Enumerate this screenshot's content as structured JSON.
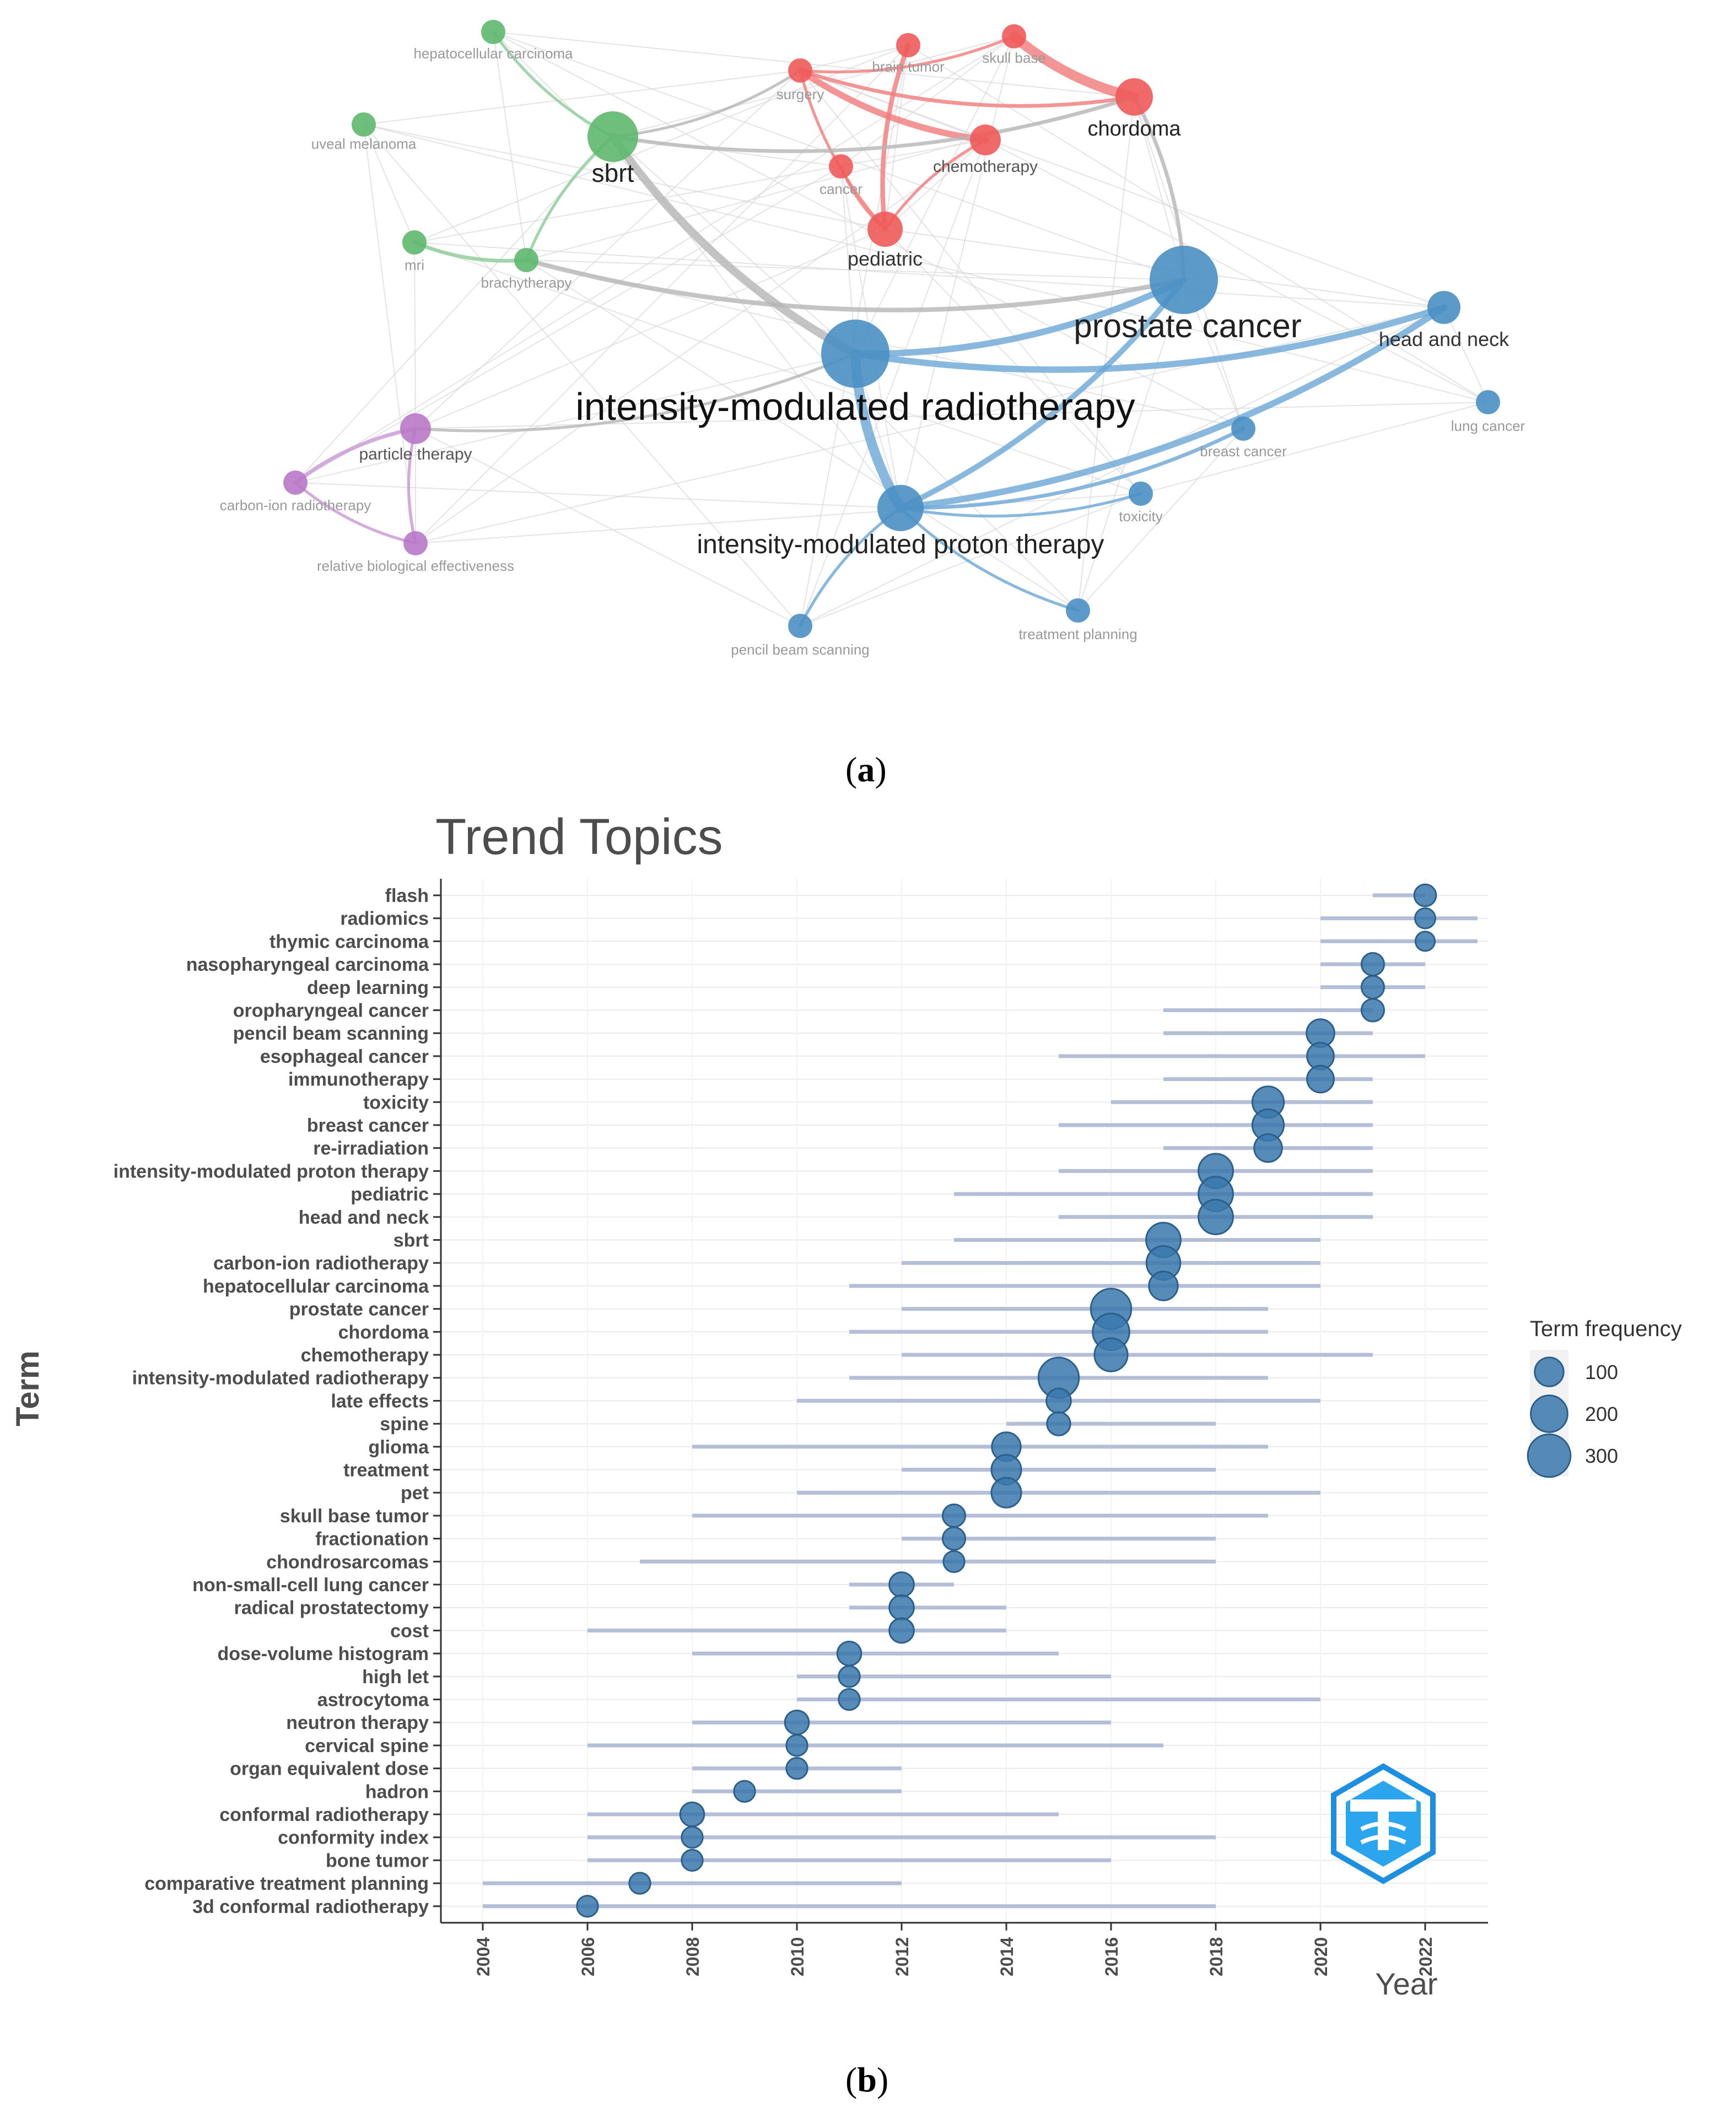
{
  "panels": [
    {
      "label_open": "(",
      "label_letter": "a",
      "label_close": ")"
    },
    {
      "label_open": "(",
      "label_letter": "b",
      "label_close": ")"
    }
  ],
  "chart_data": [
    {
      "type": "network",
      "title": "",
      "clusters": {
        "red": "#f05a5a",
        "green": "#5db86d",
        "blue": "#4a8fc4",
        "purple": "#b878c8",
        "grey": "#b8b8b8"
      },
      "nodes": [
        {
          "id": "hepatocellular carcinoma",
          "cluster": "green",
          "weight": 1
        },
        {
          "id": "uveal melanoma",
          "cluster": "green",
          "weight": 1
        },
        {
          "id": "sbrt",
          "cluster": "green",
          "weight": 4
        },
        {
          "id": "mri",
          "cluster": "green",
          "weight": 1
        },
        {
          "id": "brachytherapy",
          "cluster": "green",
          "weight": 1
        },
        {
          "id": "brain tumor",
          "cluster": "red",
          "weight": 1
        },
        {
          "id": "skull base",
          "cluster": "red",
          "weight": 1
        },
        {
          "id": "surgery",
          "cluster": "red",
          "weight": 1
        },
        {
          "id": "chordoma",
          "cluster": "red",
          "weight": 2
        },
        {
          "id": "chemotherapy",
          "cluster": "red",
          "weight": 1.5
        },
        {
          "id": "cancer",
          "cluster": "red",
          "weight": 1
        },
        {
          "id": "pediatric",
          "cluster": "red",
          "weight": 2
        },
        {
          "id": "prostate cancer",
          "cluster": "blue",
          "weight": 6
        },
        {
          "id": "head and neck",
          "cluster": "blue",
          "weight": 2
        },
        {
          "id": "intensity-modulated radiotherapy",
          "cluster": "blue",
          "weight": 8
        },
        {
          "id": "lung cancer",
          "cluster": "blue",
          "weight": 1
        },
        {
          "id": "breast cancer",
          "cluster": "blue",
          "weight": 1
        },
        {
          "id": "toxicity",
          "cluster": "blue",
          "weight": 1
        },
        {
          "id": "intensity-modulated proton therapy",
          "cluster": "blue",
          "weight": 4
        },
        {
          "id": "pencil beam scanning",
          "cluster": "blue",
          "weight": 1
        },
        {
          "id": "treatment planning",
          "cluster": "blue",
          "weight": 1
        },
        {
          "id": "particle therapy",
          "cluster": "purple",
          "weight": 1.5
        },
        {
          "id": "carbon-ion radiotherapy",
          "cluster": "purple",
          "weight": 1
        },
        {
          "id": "relative biological effectiveness",
          "cluster": "purple",
          "weight": 1
        }
      ],
      "edges": [
        {
          "source": "skull base",
          "target": "chordoma",
          "strength": 5
        },
        {
          "source": "surgery",
          "target": "chemotherapy",
          "strength": 3
        },
        {
          "source": "brain tumor",
          "target": "pediatric",
          "strength": 2
        },
        {
          "source": "surgery",
          "target": "chordoma",
          "strength": 1.5
        },
        {
          "source": "surgery",
          "target": "skull base",
          "strength": 1
        },
        {
          "source": "chemotherapy",
          "target": "pediatric",
          "strength": 1
        },
        {
          "source": "cancer",
          "target": "pediatric",
          "strength": 1
        },
        {
          "source": "surgery",
          "target": "pediatric",
          "strength": 1
        },
        {
          "source": "sbrt",
          "target": "surgery",
          "strength": 1
        },
        {
          "source": "sbrt",
          "target": "chordoma",
          "strength": 1.5
        },
        {
          "source": "sbrt",
          "target": "intensity-modulated radiotherapy",
          "strength": 4
        },
        {
          "source": "mri",
          "target": "brachytherapy",
          "strength": 1.5
        },
        {
          "source": "sbrt",
          "target": "brachytherapy",
          "strength": 1
        },
        {
          "source": "brachytherapy",
          "target": "prostate cancer",
          "strength": 2
        },
        {
          "source": "hepatocellular carcinoma",
          "target": "sbrt",
          "strength": 1
        },
        {
          "source": "intensity-modulated radiotherapy",
          "target": "prostate cancer",
          "strength": 3
        },
        {
          "source": "intensity-modulated radiotherapy",
          "target": "head and neck",
          "strength": 3
        },
        {
          "source": "intensity-modulated radiotherapy",
          "target": "intensity-modulated proton therapy",
          "strength": 5
        },
        {
          "source": "intensity-modulated proton therapy",
          "target": "prostate cancer",
          "strength": 2.5
        },
        {
          "source": "intensity-modulated proton therapy",
          "target": "head and neck",
          "strength": 3
        },
        {
          "source": "intensity-modulated proton therapy",
          "target": "breast cancer",
          "strength": 1.5
        },
        {
          "source": "intensity-modulated proton therapy",
          "target": "toxicity",
          "strength": 1
        },
        {
          "source": "intensity-modulated proton therapy",
          "target": "pencil beam scanning",
          "strength": 1
        },
        {
          "source": "intensity-modulated proton therapy",
          "target": "treatment planning",
          "strength": 1
        },
        {
          "source": "particle therapy",
          "target": "carbon-ion radiotherapy",
          "strength": 1.5
        },
        {
          "source": "carbon-ion radiotherapy",
          "target": "relative biological effectiveness",
          "strength": 1
        },
        {
          "source": "particle therapy",
          "target": "relative biological effectiveness",
          "strength": 1
        },
        {
          "source": "prostate cancer",
          "target": "chordoma",
          "strength": 1.5
        },
        {
          "source": "particle therapy",
          "target": "intensity-modulated radiotherapy",
          "strength": 1
        }
      ]
    },
    {
      "type": "scatter",
      "title": "Trend Topics",
      "xlabel": "Year",
      "ylabel": "Term",
      "xlim": [
        2003.2,
        2023.2
      ],
      "xticks": [
        2004,
        2006,
        2008,
        2010,
        2012,
        2014,
        2016,
        2018,
        2020,
        2022
      ],
      "legend": {
        "title": "Term frequency",
        "values": [
          100,
          200,
          300
        ],
        "placement": "right"
      },
      "series": [
        {
          "points": [
            {
              "term": "flash",
              "year": 2022,
              "q1": 2021,
              "q3": 2022,
              "freq": 40
            },
            {
              "term": "radiomics",
              "year": 2022,
              "q1": 2020,
              "q3": 2023,
              "freq": 30
            },
            {
              "term": "thymic carcinoma",
              "year": 2022,
              "q1": 2020,
              "q3": 2023,
              "freq": 25
            },
            {
              "term": "nasopharyngeal carcinoma",
              "year": 2021,
              "q1": 2020,
              "q3": 2022,
              "freq": 45
            },
            {
              "term": "deep learning",
              "year": 2021,
              "q1": 2020,
              "q3": 2022,
              "freq": 45
            },
            {
              "term": "oropharyngeal cancer",
              "year": 2021,
              "q1": 2017,
              "q3": 2021,
              "freq": 45
            },
            {
              "term": "pencil beam scanning",
              "year": 2020,
              "q1": 2017,
              "q3": 2021,
              "freq": 90
            },
            {
              "term": "esophageal cancer",
              "year": 2020,
              "q1": 2015,
              "q3": 2022,
              "freq": 80
            },
            {
              "term": "immunotherapy",
              "year": 2020,
              "q1": 2017,
              "q3": 2021,
              "freq": 80
            },
            {
              "term": "toxicity",
              "year": 2019,
              "q1": 2016,
              "q3": 2021,
              "freq": 130
            },
            {
              "term": "breast cancer",
              "year": 2019,
              "q1": 2015,
              "q3": 2021,
              "freq": 130
            },
            {
              "term": "re-irradiation",
              "year": 2019,
              "q1": 2017,
              "q3": 2021,
              "freq": 90
            },
            {
              "term": "intensity-modulated proton therapy",
              "year": 2018,
              "q1": 2015,
              "q3": 2021,
              "freq": 170
            },
            {
              "term": "pediatric",
              "year": 2018,
              "q1": 2013,
              "q3": 2021,
              "freq": 170
            },
            {
              "term": "head and neck",
              "year": 2018,
              "q1": 2015,
              "q3": 2021,
              "freq": 170
            },
            {
              "term": "sbrt",
              "year": 2017,
              "q1": 2013,
              "q3": 2020,
              "freq": 170
            },
            {
              "term": "carbon-ion radiotherapy",
              "year": 2017,
              "q1": 2012,
              "q3": 2020,
              "freq": 160
            },
            {
              "term": "hepatocellular carcinoma",
              "year": 2017,
              "q1": 2011,
              "q3": 2020,
              "freq": 100
            },
            {
              "term": "prostate cancer",
              "year": 2016,
              "q1": 2012,
              "q3": 2019,
              "freq": 260
            },
            {
              "term": "chordoma",
              "year": 2016,
              "q1": 2011,
              "q3": 2019,
              "freq": 200
            },
            {
              "term": "chemotherapy",
              "year": 2016,
              "q1": 2012,
              "q3": 2021,
              "freq": 150
            },
            {
              "term": "intensity-modulated radiotherapy",
              "year": 2015,
              "q1": 2011,
              "q3": 2019,
              "freq": 260
            },
            {
              "term": "late effects",
              "year": 2015,
              "q1": 2010,
              "q3": 2020,
              "freq": 60
            },
            {
              "term": "spine",
              "year": 2015,
              "q1": 2014,
              "q3": 2018,
              "freq": 50
            },
            {
              "term": "glioma",
              "year": 2014,
              "q1": 2008,
              "q3": 2019,
              "freq": 100
            },
            {
              "term": "treatment",
              "year": 2014,
              "q1": 2012,
              "q3": 2018,
              "freq": 110
            },
            {
              "term": "pet",
              "year": 2014,
              "q1": 2010,
              "q3": 2020,
              "freq": 110
            },
            {
              "term": "skull base tumor",
              "year": 2013,
              "q1": 2008,
              "q3": 2019,
              "freq": 45
            },
            {
              "term": "fractionation",
              "year": 2013,
              "q1": 2012,
              "q3": 2018,
              "freq": 45
            },
            {
              "term": "chondrosarcomas",
              "year": 2013,
              "q1": 2007,
              "q3": 2018,
              "freq": 35
            },
            {
              "term": "non-small-cell lung cancer",
              "year": 2012,
              "q1": 2011,
              "q3": 2013,
              "freq": 60
            },
            {
              "term": "radical prostatectomy",
              "year": 2012,
              "q1": 2011,
              "q3": 2014,
              "freq": 60
            },
            {
              "term": "cost",
              "year": 2012,
              "q1": 2006,
              "q3": 2014,
              "freq": 60
            },
            {
              "term": "dose-volume histogram",
              "year": 2011,
              "q1": 2008,
              "q3": 2015,
              "freq": 55
            },
            {
              "term": "high let",
              "year": 2011,
              "q1": 2010,
              "q3": 2016,
              "freq": 35
            },
            {
              "term": "astrocytoma",
              "year": 2011,
              "q1": 2010,
              "q3": 2020,
              "freq": 35
            },
            {
              "term": "neutron therapy",
              "year": 2010,
              "q1": 2008,
              "q3": 2016,
              "freq": 55
            },
            {
              "term": "cervical spine",
              "year": 2010,
              "q1": 2006,
              "q3": 2017,
              "freq": 35
            },
            {
              "term": "organ equivalent dose",
              "year": 2010,
              "q1": 2008,
              "q3": 2012,
              "freq": 35
            },
            {
              "term": "hadron",
              "year": 2009,
              "q1": 2008,
              "q3": 2012,
              "freq": 35
            },
            {
              "term": "conformal radiotherapy",
              "year": 2008,
              "q1": 2006,
              "q3": 2015,
              "freq": 55
            },
            {
              "term": "conformity index",
              "year": 2008,
              "q1": 2006,
              "q3": 2018,
              "freq": 35
            },
            {
              "term": "bone tumor",
              "year": 2008,
              "q1": 2006,
              "q3": 2016,
              "freq": 35
            },
            {
              "term": "comparative treatment planning",
              "year": 2007,
              "q1": 2004,
              "q3": 2012,
              "freq": 35
            },
            {
              "term": "3d conformal radiotherapy",
              "year": 2006,
              "q1": 2004,
              "q3": 2018,
              "freq": 35
            }
          ]
        }
      ]
    }
  ]
}
